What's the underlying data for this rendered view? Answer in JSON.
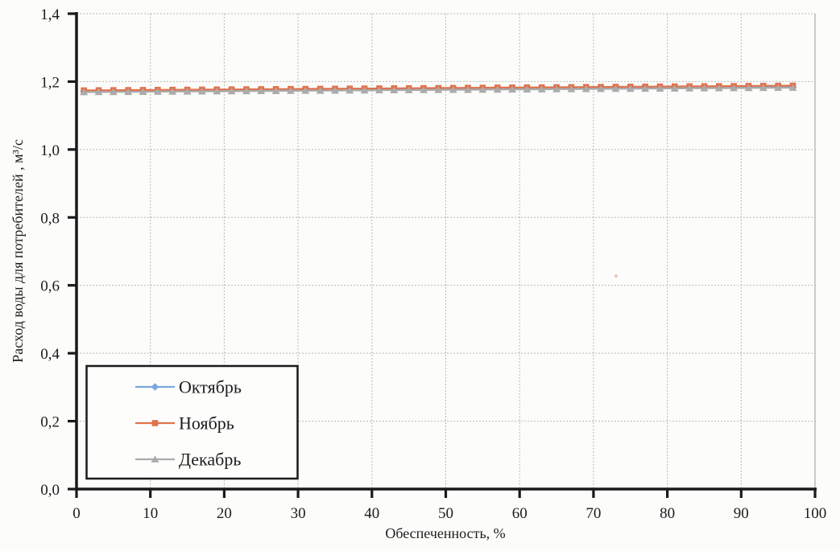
{
  "chart_data": {
    "type": "line",
    "title": "",
    "xlabel": "Обеспеченность, %",
    "ylabel": "Расход воды для потребителей , м³/с",
    "xlim": [
      0,
      100
    ],
    "ylim": [
      0.0,
      1.4
    ],
    "grid": true,
    "legend_position": "inside-bottom-left",
    "x_ticks": [
      0,
      10,
      20,
      30,
      40,
      50,
      60,
      70,
      80,
      90,
      100
    ],
    "x_tick_labels": [
      "0",
      "10",
      "20",
      "30",
      "40",
      "50",
      "60",
      "70",
      "80",
      "90",
      "100"
    ],
    "y_ticks": [
      0.0,
      0.2,
      0.4,
      0.6,
      0.8,
      1.0,
      1.2,
      1.4
    ],
    "y_tick_labels": [
      "0,0",
      "0,2",
      "0,4",
      "0,6",
      "0,8",
      "1,0",
      "1,2",
      "1,4"
    ],
    "x": [
      1,
      3,
      5,
      7,
      9,
      11,
      13,
      15,
      17,
      19,
      21,
      23,
      25,
      27,
      29,
      31,
      33,
      35,
      37,
      39,
      41,
      43,
      45,
      47,
      49,
      51,
      53,
      55,
      57,
      59,
      61,
      63,
      65,
      67,
      69,
      71,
      73,
      75,
      77,
      79,
      81,
      83,
      85,
      87,
      89,
      91,
      93,
      95,
      97
    ],
    "series": [
      {
        "name": "Октябрь",
        "color": "#7aa7dc",
        "marker": "diamond",
        "values": [
          1.171,
          1.1713,
          1.1715,
          1.1718,
          1.1721,
          1.1724,
          1.1726,
          1.1729,
          1.1732,
          1.1734,
          1.1737,
          1.174,
          1.1743,
          1.1745,
          1.1748,
          1.1751,
          1.1753,
          1.1756,
          1.1759,
          1.1761,
          1.1764,
          1.1767,
          1.177,
          1.1772,
          1.1775,
          1.1778,
          1.178,
          1.1783,
          1.1786,
          1.1789,
          1.1791,
          1.1794,
          1.1797,
          1.1799,
          1.1802,
          1.1805,
          1.1808,
          1.181,
          1.1813,
          1.1816,
          1.1818,
          1.1821,
          1.1824,
          1.1826,
          1.1829,
          1.1832,
          1.1835,
          1.1837,
          1.184
        ]
      },
      {
        "name": "Ноябрь",
        "color": "#e0734c",
        "marker": "square",
        "values": [
          1.174,
          1.1743,
          1.1746,
          1.1749,
          1.1752,
          1.1755,
          1.1758,
          1.176,
          1.1763,
          1.1766,
          1.1769,
          1.1772,
          1.1775,
          1.1778,
          1.1781,
          1.1784,
          1.1787,
          1.179,
          1.1793,
          1.1795,
          1.1798,
          1.1801,
          1.1804,
          1.1807,
          1.181,
          1.1813,
          1.1816,
          1.1819,
          1.1822,
          1.1825,
          1.1828,
          1.183,
          1.1833,
          1.1836,
          1.1839,
          1.1842,
          1.1845,
          1.1848,
          1.1851,
          1.1854,
          1.1857,
          1.186,
          1.1862,
          1.1865,
          1.1868,
          1.1871,
          1.1874,
          1.1877,
          1.188
        ]
      },
      {
        "name": "Декабрь",
        "color": "#ababab",
        "marker": "triangle",
        "values": [
          1.169,
          1.1693,
          1.1695,
          1.1698,
          1.1701,
          1.1704,
          1.1706,
          1.1709,
          1.1712,
          1.1714,
          1.1717,
          1.172,
          1.1723,
          1.1725,
          1.1728,
          1.1731,
          1.1733,
          1.1736,
          1.1739,
          1.1741,
          1.1744,
          1.1747,
          1.175,
          1.1752,
          1.1755,
          1.1758,
          1.176,
          1.1763,
          1.1766,
          1.1769,
          1.1771,
          1.1774,
          1.1777,
          1.1779,
          1.1782,
          1.1785,
          1.1788,
          1.179,
          1.1793,
          1.1796,
          1.1798,
          1.1801,
          1.1804,
          1.1806,
          1.1809,
          1.1812,
          1.1815,
          1.1817,
          1.182
        ]
      }
    ],
    "colors": {
      "axis": "#1a1a1a",
      "grid": "#b8b8b8",
      "legend_border": "#1a1a1a",
      "background": "#fcfcfb"
    }
  }
}
